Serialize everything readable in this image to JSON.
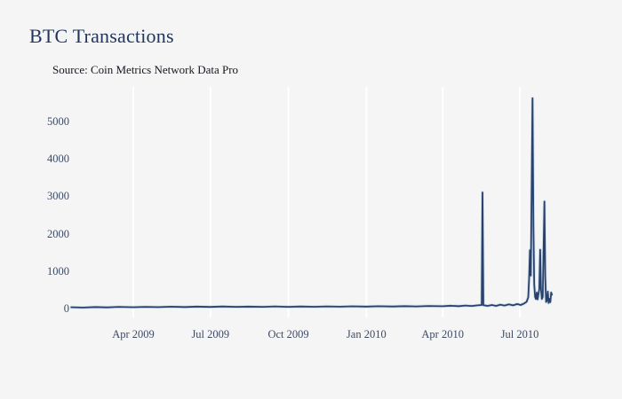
{
  "header": {
    "title": "BTC Transactions",
    "subtitle": "Source: Coin Metrics Network Data Pro"
  },
  "colors": {
    "background": "#f5f5f6",
    "gridline": "#ffffff",
    "line": "#26426d",
    "line_halo": "#c9d4e6",
    "title_text": "#22365c",
    "tick_text": "#3d4a63"
  },
  "chart_data": {
    "type": "line",
    "title": "BTC Transactions",
    "subtitle": "Source: Coin Metrics Network Data Pro",
    "xlabel": "",
    "ylabel": "",
    "legend": "none",
    "grid": "vertical-only",
    "ylim": [
      0,
      5900
    ],
    "y_ticks": [
      0,
      1000,
      2000,
      3000,
      4000,
      5000
    ],
    "x_ticks": [
      {
        "label": "Apr 2009",
        "date": "2009-04-01"
      },
      {
        "label": "Jul 2009",
        "date": "2009-07-01"
      },
      {
        "label": "Oct 2009",
        "date": "2009-10-01"
      },
      {
        "label": "Jan 2010",
        "date": "2010-01-01"
      },
      {
        "label": "Apr 2010",
        "date": "2010-04-01"
      },
      {
        "label": "Jul 2010",
        "date": "2010-07-01"
      }
    ],
    "series": [
      {
        "name": "BTC Transactions",
        "x": [
          "2009-01-17",
          "2009-02-01",
          "2009-02-15",
          "2009-03-01",
          "2009-03-15",
          "2009-04-01",
          "2009-04-15",
          "2009-05-01",
          "2009-05-15",
          "2009-06-01",
          "2009-06-15",
          "2009-07-01",
          "2009-07-15",
          "2009-08-01",
          "2009-08-15",
          "2009-09-01",
          "2009-09-15",
          "2009-10-01",
          "2009-10-15",
          "2009-11-01",
          "2009-11-15",
          "2009-12-01",
          "2009-12-15",
          "2010-01-01",
          "2010-01-15",
          "2010-02-01",
          "2010-02-15",
          "2010-03-01",
          "2010-03-15",
          "2010-04-01",
          "2010-04-10",
          "2010-04-20",
          "2010-04-28",
          "2010-05-05",
          "2010-05-12",
          "2010-05-17",
          "2010-05-18",
          "2010-05-19",
          "2010-05-24",
          "2010-05-29",
          "2010-06-03",
          "2010-06-08",
          "2010-06-13",
          "2010-06-18",
          "2010-06-23",
          "2010-06-28",
          "2010-07-02",
          "2010-07-06",
          "2010-07-09",
          "2010-07-11",
          "2010-07-12",
          "2010-07-13",
          "2010-07-14",
          "2010-07-16",
          "2010-07-17",
          "2010-07-18",
          "2010-07-19",
          "2010-07-20",
          "2010-07-21",
          "2010-07-22",
          "2010-07-24",
          "2010-07-25",
          "2010-07-26",
          "2010-07-27",
          "2010-07-28",
          "2010-07-30",
          "2010-07-31",
          "2010-08-01",
          "2010-08-02",
          "2010-08-03",
          "2010-08-04",
          "2010-08-05",
          "2010-08-06",
          "2010-08-07",
          "2010-08-08"
        ],
        "y": [
          35,
          25,
          40,
          30,
          45,
          35,
          45,
          38,
          50,
          40,
          52,
          42,
          55,
          45,
          52,
          44,
          56,
          46,
          55,
          48,
          58,
          50,
          60,
          52,
          62,
          55,
          64,
          58,
          68,
          62,
          75,
          65,
          80,
          68,
          85,
          95,
          3105,
          90,
          70,
          95,
          72,
          105,
          80,
          112,
          85,
          120,
          95,
          135,
          180,
          300,
          820,
          1560,
          880,
          5620,
          2200,
          650,
          310,
          255,
          430,
          245,
          520,
          1570,
          530,
          255,
          310,
          2860,
          850,
          175,
          215,
          455,
          150,
          260,
          170,
          430,
          350
        ]
      }
    ]
  }
}
